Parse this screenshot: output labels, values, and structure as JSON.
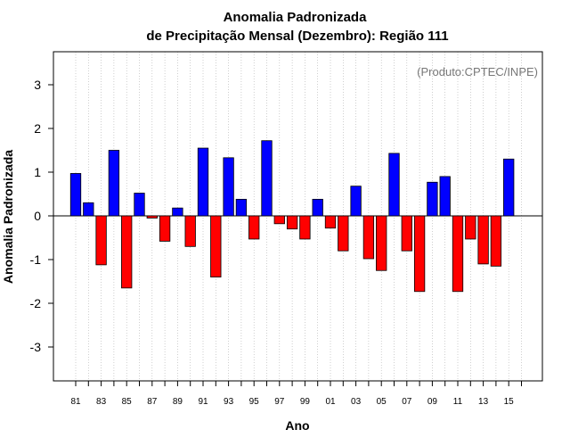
{
  "chart_data": {
    "type": "bar",
    "title_line1": "Anomalia Padronizada",
    "title_line2": "de Precipitação Mensal (Dezembro): Região 111",
    "xlabel": "Ano",
    "ylabel": "Anomalia Padronizada",
    "source_note": "(Produto:CPTEC/INPE)",
    "ylim": [
      -3.75,
      3.7
    ],
    "yticks": [
      -3,
      -2,
      -1,
      0,
      1,
      2,
      3
    ],
    "years": [
      1981,
      1982,
      1983,
      1984,
      1985,
      1986,
      1987,
      1988,
      1989,
      1990,
      1991,
      1992,
      1993,
      1994,
      1995,
      1996,
      1997,
      1998,
      1999,
      2000,
      2001,
      2002,
      2003,
      2004,
      2005,
      2006,
      2007,
      2008,
      2009,
      2010,
      2011,
      2012,
      2013,
      2014,
      2015,
      2016
    ],
    "tick_labels": [
      "81",
      "83",
      "85",
      "87",
      "89",
      "91",
      "93",
      "95",
      "97",
      "99",
      "01",
      "03",
      "05",
      "07",
      "09",
      "11",
      "13",
      "15"
    ],
    "values": [
      0.97,
      0.3,
      -1.12,
      1.5,
      -1.65,
      0.52,
      -0.05,
      -0.58,
      0.18,
      -0.7,
      1.55,
      -1.4,
      1.33,
      0.38,
      -0.53,
      1.72,
      -0.18,
      -0.3,
      -0.53,
      0.38,
      -0.28,
      -0.8,
      0.68,
      -0.98,
      -1.25,
      1.43,
      -0.8,
      -1.73,
      0.77,
      0.9,
      -1.73,
      -0.53,
      -1.1,
      -1.15,
      1.3,
      null
    ],
    "colors": {
      "positive": "#0000ff",
      "negative": "#ff0000",
      "grid": "#b0b0b0"
    }
  }
}
